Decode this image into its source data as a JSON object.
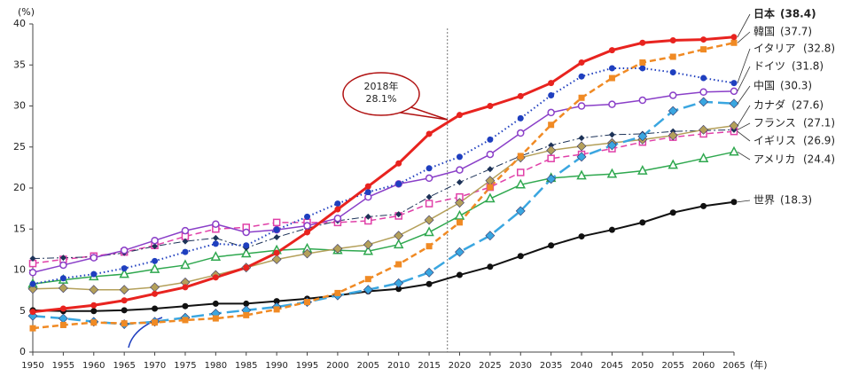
{
  "chart_data": {
    "type": "line",
    "y_axis_label": "(%)",
    "x_axis_label": "(年)",
    "x": [
      1950,
      1955,
      1960,
      1965,
      1970,
      1975,
      1980,
      1985,
      1990,
      1995,
      2000,
      2005,
      2010,
      2015,
      2020,
      2025,
      2030,
      2035,
      2040,
      2045,
      2050,
      2055,
      2060,
      2065
    ],
    "xlim": [
      1950,
      2065
    ],
    "ylim": [
      0,
      40
    ],
    "xticks": [
      1950,
      1955,
      1960,
      1965,
      1970,
      1975,
      1980,
      1985,
      1990,
      1995,
      2000,
      2005,
      2010,
      2015,
      2020,
      2025,
      2030,
      2035,
      2040,
      2045,
      2050,
      2055,
      2060,
      2065
    ],
    "yticks": [
      0,
      5,
      10,
      15,
      20,
      25,
      30,
      35,
      40
    ],
    "grid": false,
    "annotation": {
      "lines": [
        "2018年",
        "28.1%"
      ],
      "x": 2018
    },
    "series": [
      {
        "name": "日本",
        "color": "#e8231f",
        "width": 3,
        "dash": "solid",
        "marker": "circle",
        "values": [
          4.9,
          5.3,
          5.7,
          6.3,
          7.1,
          7.9,
          9.1,
          10.3,
          12.1,
          14.6,
          17.4,
          20.2,
          23.0,
          26.6,
          28.9,
          30.0,
          31.2,
          32.8,
          35.3,
          36.8,
          37.7,
          38.0,
          38.1,
          38.4
        ],
        "value_labels": [
          null,
          null,
          null,
          null,
          null,
          null,
          null,
          null,
          null,
          null,
          null,
          null,
          null,
          null,
          null,
          null,
          null,
          null,
          null,
          null,
          null,
          null,
          null,
          "(38.4)"
        ]
      },
      {
        "name": "韓国",
        "color": "#f08a24",
        "width": 2.5,
        "dash": "dashed",
        "marker": "square",
        "values": [
          2.9,
          3.3,
          3.6,
          3.5,
          3.6,
          3.9,
          4.1,
          4.5,
          5.2,
          6.1,
          7.2,
          8.9,
          10.7,
          12.9,
          15.8,
          20.1,
          23.9,
          27.7,
          31.0,
          33.4,
          35.3,
          36.0,
          36.9,
          37.7
        ],
        "value_labels": [
          null,
          null,
          null,
          null,
          null,
          null,
          null,
          null,
          null,
          null,
          null,
          null,
          null,
          null,
          null,
          null,
          null,
          null,
          null,
          null,
          null,
          null,
          null,
          "(37.7)"
        ]
      },
      {
        "name": "イタリア",
        "color": "#1f3fbf",
        "width": 2,
        "dash": "dotted",
        "marker": "circle",
        "values": [
          8.3,
          9.0,
          9.5,
          10.2,
          11.1,
          12.2,
          13.2,
          13.0,
          14.9,
          16.5,
          18.1,
          19.5,
          20.5,
          22.4,
          23.8,
          25.9,
          28.5,
          31.3,
          33.6,
          34.6,
          34.6,
          34.1,
          33.4,
          32.8
        ],
        "value_labels": [
          null,
          null,
          null,
          null,
          null,
          null,
          null,
          null,
          null,
          null,
          null,
          null,
          null,
          null,
          null,
          null,
          null,
          null,
          null,
          null,
          null,
          null,
          null,
          "(32.8)"
        ]
      },
      {
        "name": "ドイツ",
        "color": "#8a3fc8",
        "width": 1.5,
        "dash": "solid",
        "marker": "open-circle",
        "values": [
          9.7,
          10.6,
          11.5,
          12.4,
          13.6,
          14.8,
          15.6,
          14.6,
          14.9,
          15.4,
          16.3,
          18.9,
          20.5,
          21.2,
          22.2,
          24.1,
          26.7,
          29.2,
          30.0,
          30.2,
          30.7,
          31.3,
          31.7,
          31.8
        ],
        "value_labels": [
          null,
          null,
          null,
          null,
          null,
          null,
          null,
          null,
          null,
          null,
          null,
          null,
          null,
          null,
          null,
          null,
          null,
          null,
          null,
          null,
          null,
          null,
          null,
          "(31.8)"
        ]
      },
      {
        "name": "中国",
        "color": "#3aa6e0",
        "width": 2.5,
        "dash": "long-dash",
        "marker": "diamond",
        "values": [
          4.4,
          4.1,
          3.7,
          3.4,
          3.7,
          4.2,
          4.7,
          5.1,
          5.5,
          6.1,
          6.9,
          7.6,
          8.4,
          9.7,
          12.2,
          14.2,
          17.2,
          21.1,
          23.8,
          25.2,
          26.3,
          29.4,
          30.5,
          30.3
        ],
        "value_labels": [
          null,
          null,
          null,
          null,
          null,
          null,
          null,
          null,
          null,
          null,
          null,
          null,
          null,
          null,
          null,
          null,
          null,
          null,
          null,
          null,
          null,
          null,
          null,
          "(30.3)"
        ]
      },
      {
        "name": "カナダ",
        "color": "#b4a05a",
        "width": 1.5,
        "dash": "solid",
        "marker": "diamond",
        "values": [
          7.7,
          7.8,
          7.6,
          7.6,
          7.9,
          8.5,
          9.4,
          10.3,
          11.3,
          12.0,
          12.6,
          13.1,
          14.2,
          16.1,
          18.2,
          20.9,
          23.7,
          24.6,
          25.1,
          25.5,
          25.9,
          26.4,
          27.1,
          27.6
        ],
        "value_labels": [
          null,
          null,
          null,
          null,
          null,
          null,
          null,
          null,
          null,
          null,
          null,
          null,
          null,
          null,
          null,
          null,
          null,
          null,
          null,
          null,
          null,
          null,
          null,
          "(27.6)"
        ]
      },
      {
        "name": "フランス",
        "color": "#1d3358",
        "width": 1,
        "dash": "dash-dot",
        "marker": "small-diamond",
        "values": [
          11.4,
          11.5,
          11.6,
          12.1,
          12.9,
          13.5,
          13.9,
          12.7,
          14.0,
          15.1,
          16.0,
          16.5,
          16.8,
          18.9,
          20.7,
          22.3,
          23.9,
          25.2,
          26.1,
          26.5,
          26.6,
          26.9,
          27.0,
          27.1
        ],
        "value_labels": [
          null,
          null,
          null,
          null,
          null,
          null,
          null,
          null,
          null,
          null,
          null,
          null,
          null,
          null,
          null,
          null,
          null,
          null,
          null,
          null,
          null,
          null,
          null,
          "(27.1)"
        ]
      },
      {
        "name": "イギリス",
        "color": "#e040a8",
        "width": 1.5,
        "dash": "dashed",
        "marker": "open-square",
        "values": [
          10.8,
          11.3,
          11.7,
          12.2,
          13.0,
          14.1,
          15.0,
          15.2,
          15.8,
          15.8,
          15.8,
          16.0,
          16.6,
          18.1,
          18.9,
          20.1,
          21.9,
          23.6,
          24.1,
          24.8,
          25.6,
          26.2,
          26.6,
          26.9
        ],
        "value_labels": [
          null,
          null,
          null,
          null,
          null,
          null,
          null,
          null,
          null,
          null,
          null,
          null,
          null,
          null,
          null,
          null,
          null,
          null,
          null,
          null,
          null,
          null,
          null,
          "(26.9)"
        ]
      },
      {
        "name": "アメリカ",
        "color": "#2fa84f",
        "width": 1.5,
        "dash": "solid",
        "marker": "open-triangle",
        "values": [
          8.3,
          8.8,
          9.2,
          9.5,
          10.1,
          10.6,
          11.6,
          12.0,
          12.4,
          12.6,
          12.4,
          12.3,
          13.1,
          14.6,
          16.6,
          18.7,
          20.4,
          21.2,
          21.5,
          21.7,
          22.1,
          22.8,
          23.6,
          24.4
        ],
        "value_labels": [
          null,
          null,
          null,
          null,
          null,
          null,
          null,
          null,
          null,
          null,
          null,
          null,
          null,
          null,
          null,
          null,
          null,
          null,
          null,
          null,
          null,
          null,
          null,
          "(24.4)"
        ]
      },
      {
        "name": "世界",
        "color": "#111111",
        "width": 2,
        "dash": "solid",
        "marker": "circle",
        "values": [
          5.1,
          5.0,
          5.0,
          5.1,
          5.3,
          5.6,
          5.9,
          5.9,
          6.2,
          6.5,
          6.9,
          7.4,
          7.7,
          8.3,
          9.4,
          10.4,
          11.7,
          13.0,
          14.1,
          14.9,
          15.8,
          17.0,
          17.8,
          18.3
        ],
        "value_labels": [
          null,
          null,
          null,
          null,
          null,
          null,
          null,
          null,
          null,
          null,
          null,
          null,
          null,
          null,
          null,
          null,
          null,
          null,
          null,
          null,
          null,
          null,
          null,
          "(18.3)"
        ]
      }
    ]
  }
}
